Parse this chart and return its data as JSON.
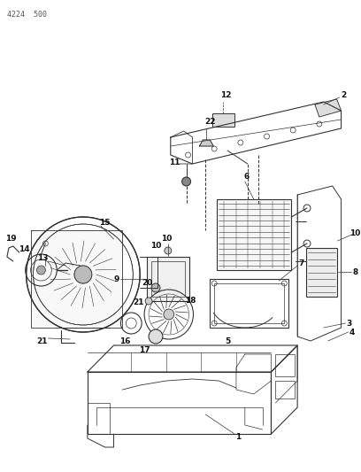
{
  "title": "4224  500",
  "bg_color": "#ffffff",
  "lc": "#333333",
  "tc": "#111111",
  "fig_width": 4.08,
  "fig_height": 5.33,
  "dpi": 100
}
